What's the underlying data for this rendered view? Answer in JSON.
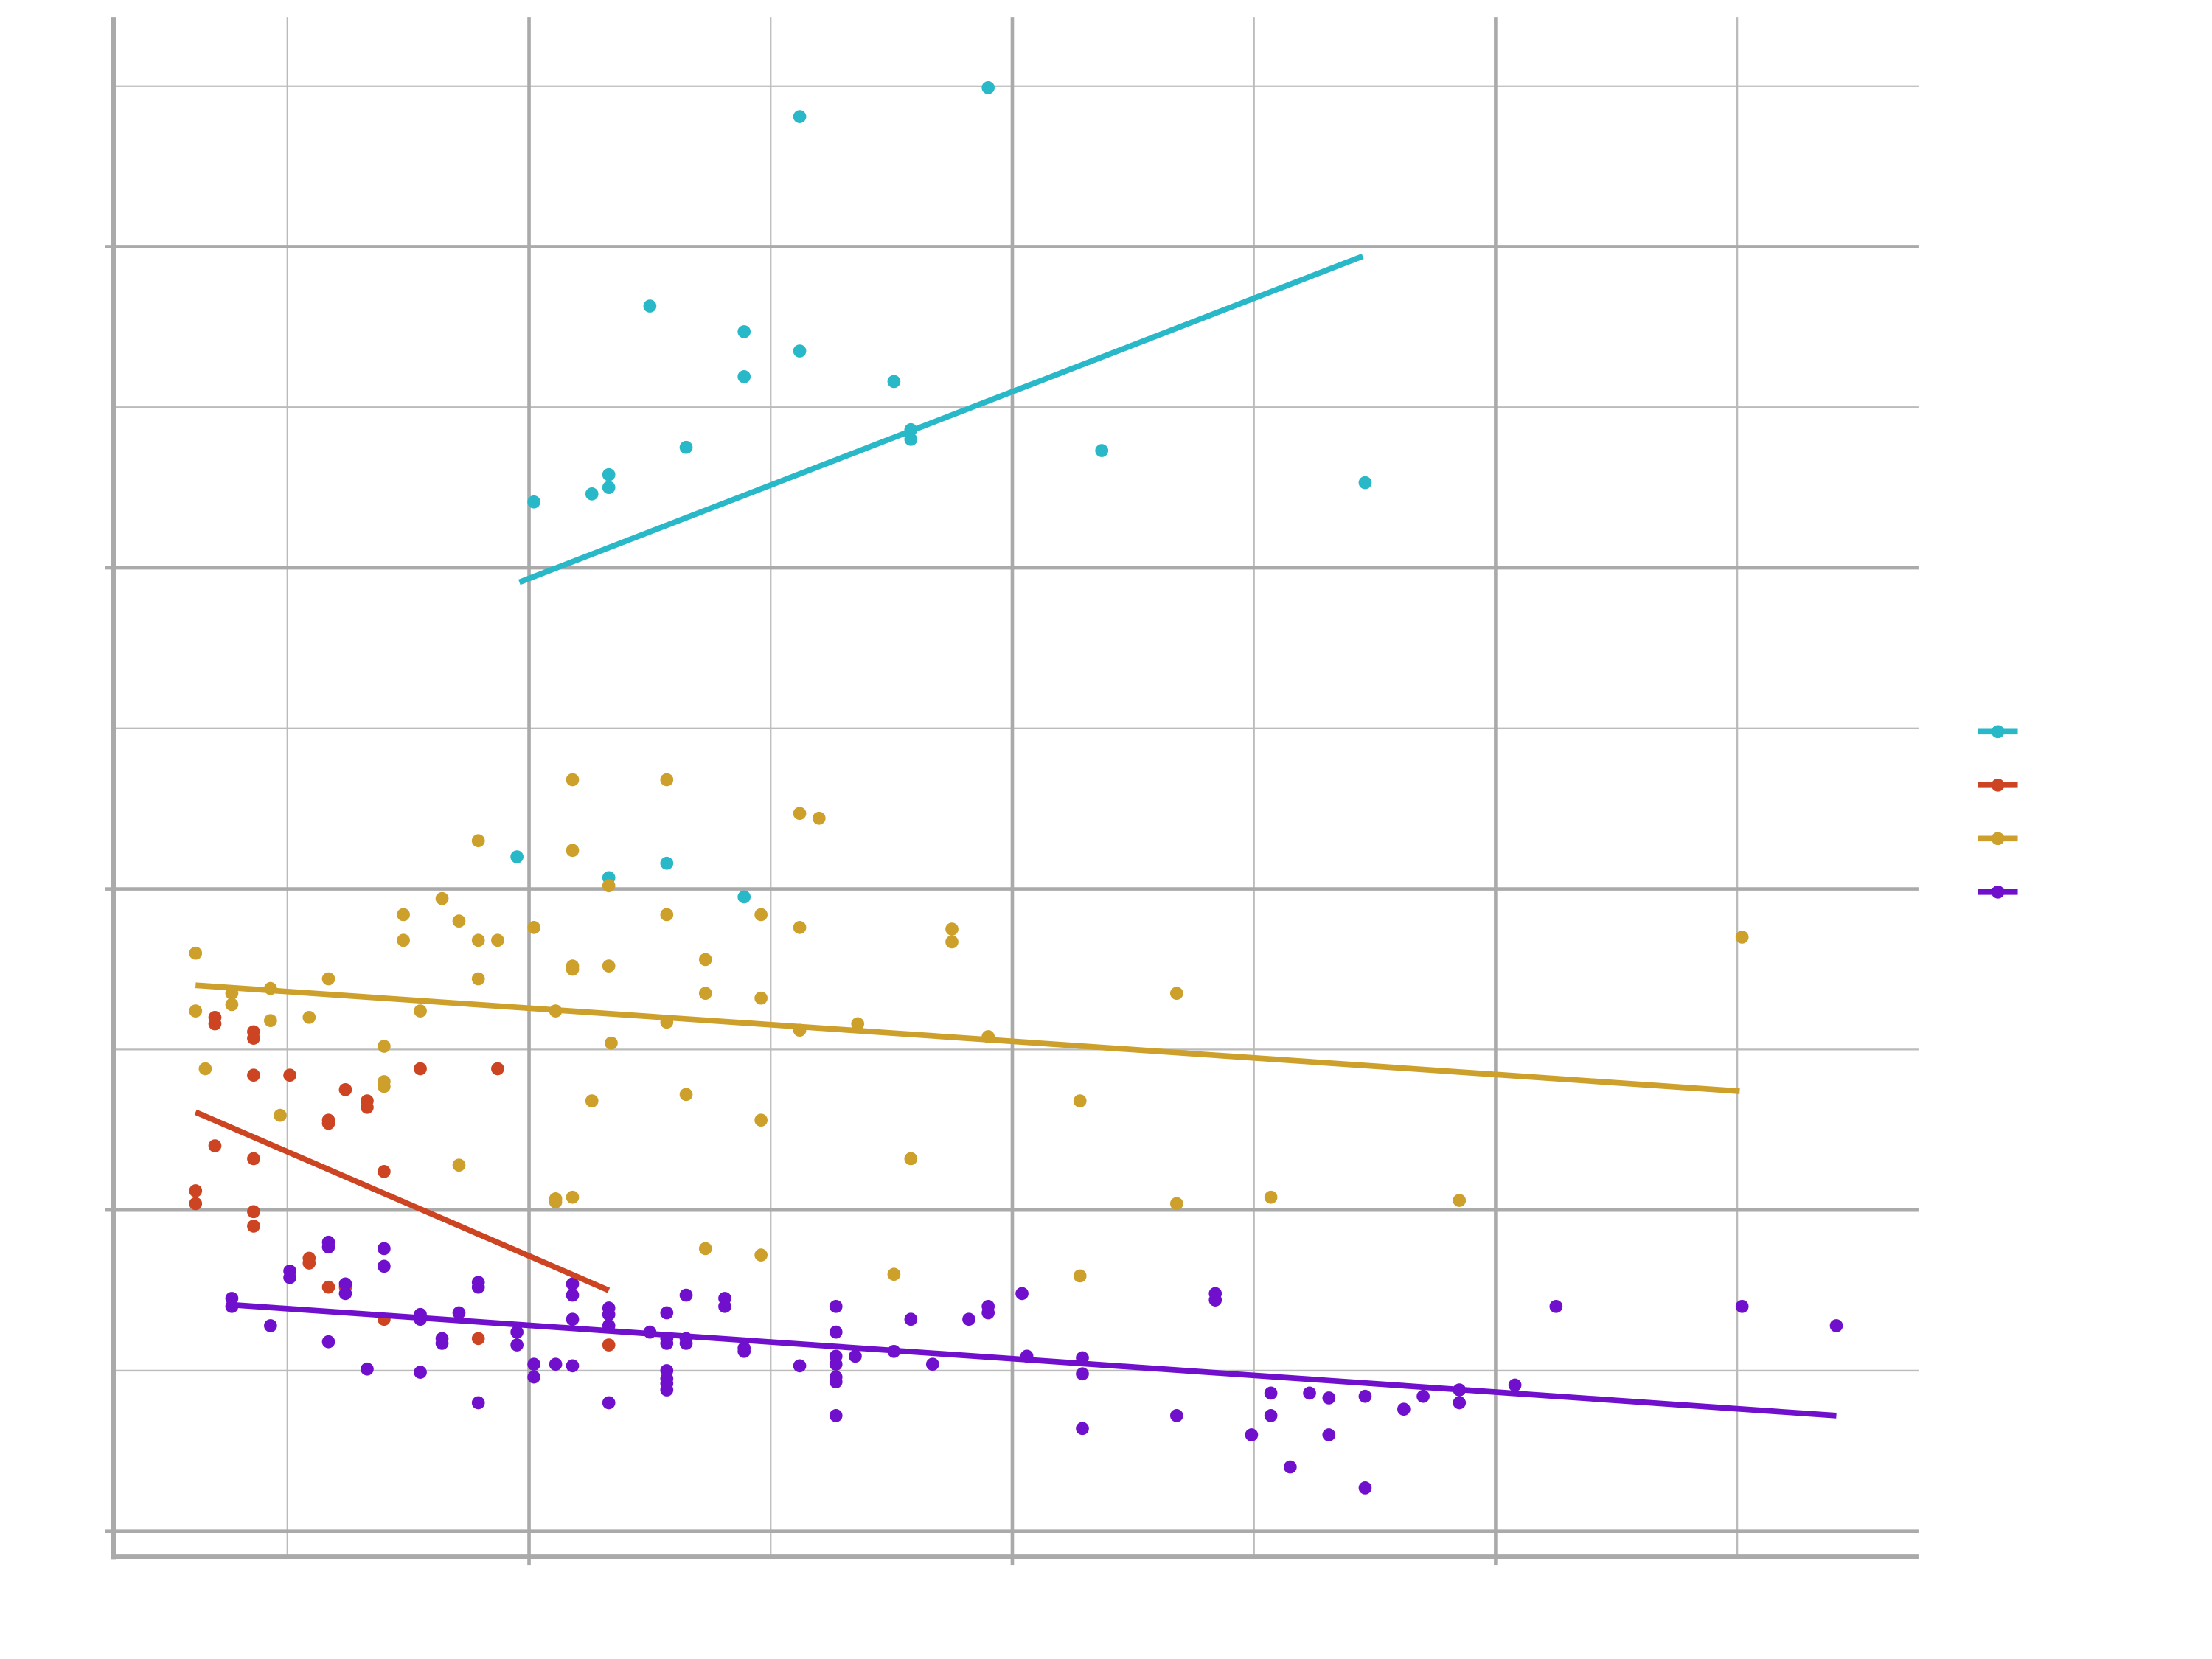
{
  "chart_data": {
    "type": "scatter",
    "xlim": [
      0.28,
      7.75
    ],
    "ylim": [
      -0.16,
      9.43
    ],
    "xticks": [
      2,
      4,
      6
    ],
    "yticks": [
      0,
      2,
      4,
      6,
      8
    ],
    "minor_xticks": [
      1,
      3,
      5,
      7
    ],
    "minor_yticks": [
      1,
      3,
      5,
      7,
      9
    ],
    "grid": true,
    "legend": "right",
    "series": [
      {
        "color": "#29b8c8",
        "x": [
          2.02,
          2.26,
          2.33,
          2.33,
          2.5,
          2.65,
          2.89,
          2.89,
          3.12,
          3.12,
          3.51,
          3.58,
          3.58,
          3.9,
          4.37,
          5.46,
          1.95,
          2.33,
          2.57,
          2.89
        ],
        "values": [
          6.41,
          6.46,
          6.5,
          6.58,
          7.63,
          6.75,
          7.47,
          7.19,
          8.81,
          7.35,
          7.16,
          6.86,
          6.8,
          8.99,
          6.73,
          6.53,
          4.2,
          4.07,
          4.16,
          3.95
        ],
        "trend": {
          "x": [
            1.96,
            5.45
          ],
          "values": [
            5.91,
            7.94
          ]
        }
      },
      {
        "color": "#cc4422",
        "x": [
          0.7,
          0.7,
          0.86,
          0.86,
          0.62,
          0.62,
          0.7,
          0.86,
          1.01,
          0.86,
          0.86,
          0.86,
          1.24,
          1.33,
          1.33,
          1.17,
          1.17,
          1.55,
          1.87,
          1.4,
          1.09,
          1.09,
          1.17,
          1.24,
          1.4,
          1.79,
          2.33
        ],
        "values": [
          3.2,
          3.16,
          3.11,
          3.07,
          2.12,
          2.04,
          2.4,
          2.84,
          2.84,
          2.32,
          1.99,
          1.9,
          2.75,
          2.68,
          2.64,
          2.56,
          2.54,
          2.88,
          2.88,
          2.24,
          1.7,
          1.67,
          1.52,
          1.52,
          1.32,
          1.2,
          1.16
        ],
        "trend": {
          "x": [
            0.62,
            2.33
          ],
          "values": [
            2.61,
            1.5
          ]
        }
      },
      {
        "color": "#cca02a",
        "x": [
          0.62,
          0.62,
          0.66,
          0.77,
          0.77,
          0.93,
          0.93,
          1.09,
          1.17,
          0.97,
          1.4,
          1.4,
          1.4,
          1.48,
          1.48,
          1.55,
          1.64,
          1.71,
          1.71,
          1.79,
          1.79,
          1.79,
          1.87,
          2.02,
          2.11,
          2.11,
          2.11,
          2.18,
          2.18,
          2.18,
          2.18,
          2.18,
          2.26,
          2.33,
          2.33,
          2.34,
          2.57,
          2.57,
          2.57,
          2.65,
          2.73,
          2.73,
          2.73,
          2.96,
          2.96,
          2.96,
          2.96,
          3.12,
          3.2,
          3.12,
          3.12,
          3.36,
          3.51,
          3.58,
          3.75,
          3.75,
          3.9,
          4.28,
          4.28,
          4.68,
          4.68,
          5.07,
          5.85,
          7.02
        ],
        "values": [
          3.6,
          3.24,
          2.88,
          3.35,
          3.28,
          3.38,
          3.18,
          3.2,
          3.44,
          2.59,
          3.02,
          2.8,
          2.77,
          3.84,
          3.68,
          3.24,
          3.94,
          3.8,
          2.28,
          4.3,
          3.68,
          3.44,
          3.68,
          3.76,
          3.24,
          2.07,
          2.05,
          4.68,
          4.24,
          3.52,
          3.5,
          2.08,
          2.68,
          4.02,
          3.52,
          3.04,
          4.68,
          3.84,
          3.17,
          2.72,
          3.56,
          3.35,
          1.76,
          3.84,
          3.32,
          2.56,
          1.72,
          4.47,
          4.44,
          3.76,
          3.12,
          3.16,
          1.6,
          2.32,
          3.75,
          3.67,
          3.08,
          2.68,
          1.59,
          3.35,
          2.04,
          2.08,
          2.06,
          3.7
        ],
        "trend": {
          "x": [
            0.62,
            7.01
          ],
          "values": [
            3.4,
            2.74
          ]
        }
      },
      {
        "color": "#7010cc",
        "x": [
          0.77,
          0.77,
          0.93,
          1.01,
          1.01,
          1.17,
          1.17,
          1.17,
          1.24,
          1.24,
          1.33,
          1.4,
          1.4,
          1.55,
          1.55,
          1.55,
          1.64,
          1.64,
          1.71,
          1.79,
          1.79,
          1.79,
          1.95,
          1.95,
          2.02,
          2.02,
          2.11,
          2.18,
          2.18,
          2.18,
          2.18,
          2.33,
          2.33,
          2.33,
          2.33,
          2.5,
          2.57,
          2.57,
          2.57,
          2.57,
          2.57,
          2.57,
          2.57,
          2.65,
          2.65,
          2.65,
          2.81,
          2.81,
          2.89,
          2.89,
          3.12,
          3.27,
          3.27,
          3.27,
          3.27,
          3.27,
          3.27,
          3.27,
          3.35,
          3.51,
          3.58,
          3.67,
          3.82,
          3.9,
          3.9,
          4.04,
          4.06,
          4.29,
          4.29,
          4.29,
          4.68,
          4.84,
          4.84,
          4.99,
          5.07,
          5.07,
          5.15,
          5.23,
          5.31,
          5.31,
          5.46,
          5.46,
          5.62,
          5.7,
          5.85,
          5.85,
          6.08,
          6.25,
          7.02,
          7.41
        ],
        "values": [
          1.45,
          1.4,
          1.28,
          1.62,
          1.58,
          1.8,
          1.77,
          1.18,
          1.54,
          1.48,
          1.01,
          1.76,
          1.65,
          1.35,
          1.32,
          0.99,
          1.2,
          1.17,
          1.36,
          1.55,
          1.52,
          0.8,
          1.24,
          1.16,
          1.04,
          0.96,
          1.04,
          1.54,
          1.47,
          1.32,
          1.03,
          1.39,
          1.35,
          1.28,
          0.8,
          1.24,
          1.36,
          1.2,
          1.17,
          1.0,
          0.95,
          0.92,
          0.88,
          1.47,
          1.2,
          1.17,
          1.45,
          1.4,
          1.14,
          1.12,
          1.03,
          1.4,
          1.24,
          1.09,
          1.04,
          0.96,
          0.93,
          0.72,
          1.09,
          1.12,
          1.32,
          1.04,
          1.32,
          1.4,
          1.36,
          1.48,
          1.09,
          1.08,
          0.98,
          0.64,
          0.72,
          1.48,
          1.44,
          0.6,
          0.86,
          0.72,
          0.4,
          0.86,
          0.83,
          0.6,
          0.84,
          0.27,
          0.76,
          0.84,
          0.88,
          0.8,
          0.91,
          1.4,
          1.4,
          1.28
        ],
        "trend": {
          "x": [
            0.77,
            7.41
          ],
          "values": [
            1.41,
            0.72
          ]
        }
      }
    ]
  }
}
